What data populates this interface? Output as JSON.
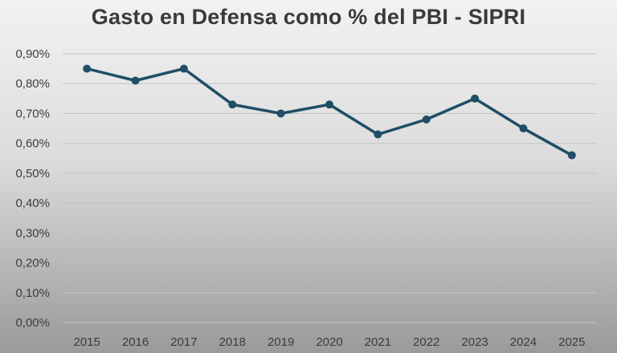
{
  "chart_data": {
    "type": "line",
    "title": "Gasto en Defensa como % del PBI - SIPRI",
    "x": [
      "2015",
      "2016",
      "2017",
      "2018",
      "2019",
      "2020",
      "2021",
      "2022",
      "2023",
      "2024",
      "2025"
    ],
    "series": [
      {
        "values": [
          0.85,
          0.81,
          0.85,
          0.73,
          0.7,
          0.73,
          0.63,
          0.68,
          0.75,
          0.65,
          0.56
        ]
      }
    ],
    "ylim": [
      0,
      0.9
    ],
    "y_ticks": [
      "0,00%",
      "0,10%",
      "0,20%",
      "0,30%",
      "0,40%",
      "0,50%",
      "0,60%",
      "0,70%",
      "0,80%",
      "0,90%"
    ],
    "xlabel": "",
    "ylabel": "",
    "grid": true,
    "legend": "none",
    "colors": {
      "line": "#1f4e66",
      "grid": "#c4c4c4"
    }
  }
}
